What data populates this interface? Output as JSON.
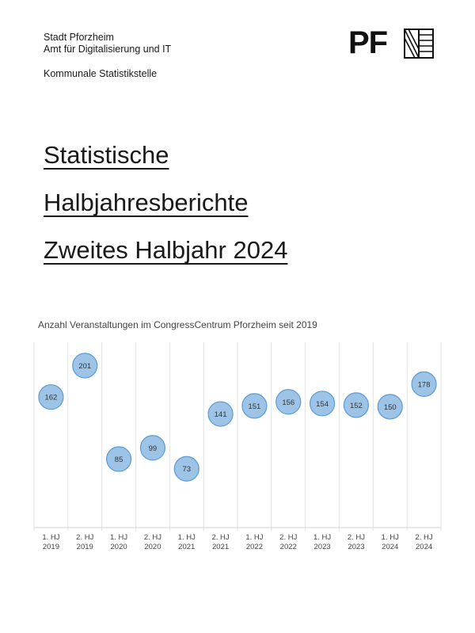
{
  "header": {
    "line1": "Stadt Pforzheim",
    "line2": "Amt für Digitalisierung und IT",
    "department": "Kommunale Statistikstelle"
  },
  "logo": {
    "text": "PF",
    "mark": "pforzheim-logo-mark"
  },
  "title": {
    "line1": "Statistische",
    "line2": "Halbjahresberichte",
    "line3": "Zweites Halbjahr 2024"
  },
  "chart_data": {
    "type": "scatter",
    "title": "Anzahl Veranstaltungen im CongressCentrum Pforzheim seit 2019",
    "categories": [
      [
        "1. HJ",
        "2019"
      ],
      [
        "2. HJ",
        "2019"
      ],
      [
        "1. HJ",
        "2020"
      ],
      [
        "2. HJ",
        "2020"
      ],
      [
        "1. HJ",
        "2021"
      ],
      [
        "2. HJ",
        "2021"
      ],
      [
        "1. HJ",
        "2022"
      ],
      [
        "2. HJ",
        "2022"
      ],
      [
        "1. HJ",
        "2023"
      ],
      [
        "2. HJ",
        "2023"
      ],
      [
        "1. HJ",
        "2024"
      ],
      [
        "2. HJ",
        "2024"
      ]
    ],
    "values": [
      162,
      201,
      85,
      99,
      73,
      141,
      151,
      156,
      154,
      152,
      150,
      178
    ],
    "ylim": [
      0,
      230
    ],
    "marker_color": "#9dc3e6",
    "marker_edge": "#5b9bd5",
    "grid": "vertical"
  }
}
